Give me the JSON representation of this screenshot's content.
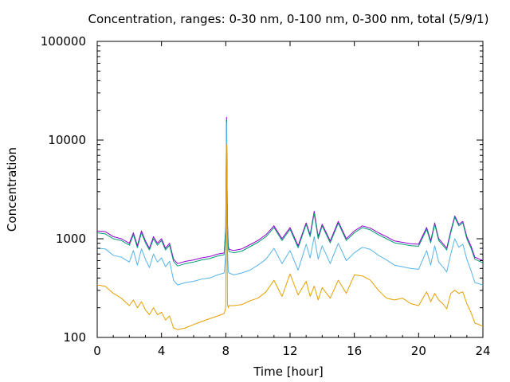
{
  "chart_data": {
    "type": "line",
    "title": "Concentration, ranges: 0-30 nm, 0-100 nm, 0-300 nm, total (5/9/1)",
    "xlabel": "Time [hour]",
    "ylabel": "Concentration",
    "xlim": [
      0,
      24
    ],
    "ylim": [
      100,
      100000
    ],
    "yscale": "log",
    "xticks": [
      "0",
      "4",
      "8",
      "12",
      "16",
      "20",
      "24"
    ],
    "yticks": [
      "100",
      "1000",
      "10000",
      "100000"
    ],
    "grid": false,
    "legend": "none",
    "x": [
      0,
      0.5,
      1,
      1.5,
      2,
      2.25,
      2.5,
      2.75,
      3,
      3.25,
      3.5,
      3.75,
      4,
      4.25,
      4.5,
      4.75,
      5,
      5.5,
      6,
      6.5,
      7,
      7.5,
      7.9,
      8.0,
      8.05,
      8.1,
      8.15,
      8.2,
      8.5,
      9,
      9.5,
      10,
      10.5,
      11,
      11.5,
      12,
      12.5,
      13,
      13.25,
      13.5,
      13.75,
      14,
      14.5,
      15,
      15.5,
      16,
      16.5,
      17,
      17.5,
      18,
      18.5,
      19,
      19.5,
      20,
      20.5,
      20.75,
      21,
      21.25,
      21.5,
      21.75,
      22,
      22.25,
      22.5,
      22.75,
      23,
      23.25,
      23.5,
      24
    ],
    "series": [
      {
        "color": "#9400d3",
        "values": [
          1200,
          1180,
          1050,
          1000,
          900,
          1150,
          850,
          1200,
          950,
          800,
          1050,
          900,
          1000,
          800,
          900,
          620,
          560,
          590,
          610,
          640,
          660,
          700,
          720,
          1300,
          17000,
          1500,
          850,
          780,
          760,
          790,
          870,
          960,
          1100,
          1350,
          1000,
          1300,
          850,
          1450,
          1100,
          1900,
          1050,
          1400,
          950,
          1500,
          1000,
          1200,
          1350,
          1280,
          1150,
          1050,
          950,
          920,
          890,
          880,
          1300,
          950,
          1450,
          1000,
          900,
          800,
          1200,
          1700,
          1400,
          1500,
          1050,
          850,
          650,
          600
        ]
      },
      {
        "color": "#009e73",
        "values": [
          1150,
          1120,
          1000,
          960,
          860,
          1100,
          810,
          1150,
          910,
          770,
          1000,
          860,
          960,
          770,
          860,
          590,
          530,
          560,
          580,
          610,
          630,
          670,
          690,
          1250,
          16000,
          1400,
          810,
          740,
          720,
          750,
          830,
          920,
          1050,
          1300,
          960,
          1250,
          810,
          1400,
          1050,
          1800,
          1000,
          1350,
          910,
          1440,
          960,
          1150,
          1300,
          1230,
          1100,
          1000,
          910,
          880,
          850,
          840,
          1250,
          910,
          1400,
          960,
          860,
          770,
          1150,
          1650,
          1350,
          1450,
          1000,
          810,
          620,
          570
        ]
      },
      {
        "color": "#56b4e9",
        "values": [
          800,
          790,
          680,
          650,
          580,
          760,
          540,
          790,
          620,
          510,
          700,
          580,
          640,
          520,
          590,
          380,
          340,
          360,
          370,
          390,
          400,
          430,
          450,
          700,
          15000,
          800,
          470,
          450,
          430,
          450,
          480,
          540,
          620,
          800,
          560,
          760,
          480,
          880,
          640,
          1050,
          620,
          850,
          560,
          900,
          600,
          720,
          820,
          780,
          680,
          610,
          540,
          520,
          500,
          490,
          760,
          540,
          850,
          580,
          520,
          460,
          700,
          1000,
          820,
          880,
          620,
          480,
          360,
          340
        ]
      },
      {
        "color": "#e69f00",
        "values": [
          340,
          330,
          280,
          250,
          210,
          240,
          200,
          230,
          190,
          170,
          200,
          170,
          180,
          150,
          165,
          125,
          120,
          125,
          135,
          145,
          155,
          165,
          175,
          200,
          9000,
          220,
          200,
          210,
          210,
          215,
          235,
          250,
          290,
          380,
          260,
          440,
          270,
          370,
          260,
          330,
          240,
          320,
          250,
          380,
          280,
          430,
          420,
          380,
          300,
          250,
          240,
          250,
          220,
          210,
          290,
          230,
          280,
          240,
          220,
          195,
          280,
          300,
          280,
          290,
          220,
          180,
          140,
          130
        ]
      }
    ]
  }
}
